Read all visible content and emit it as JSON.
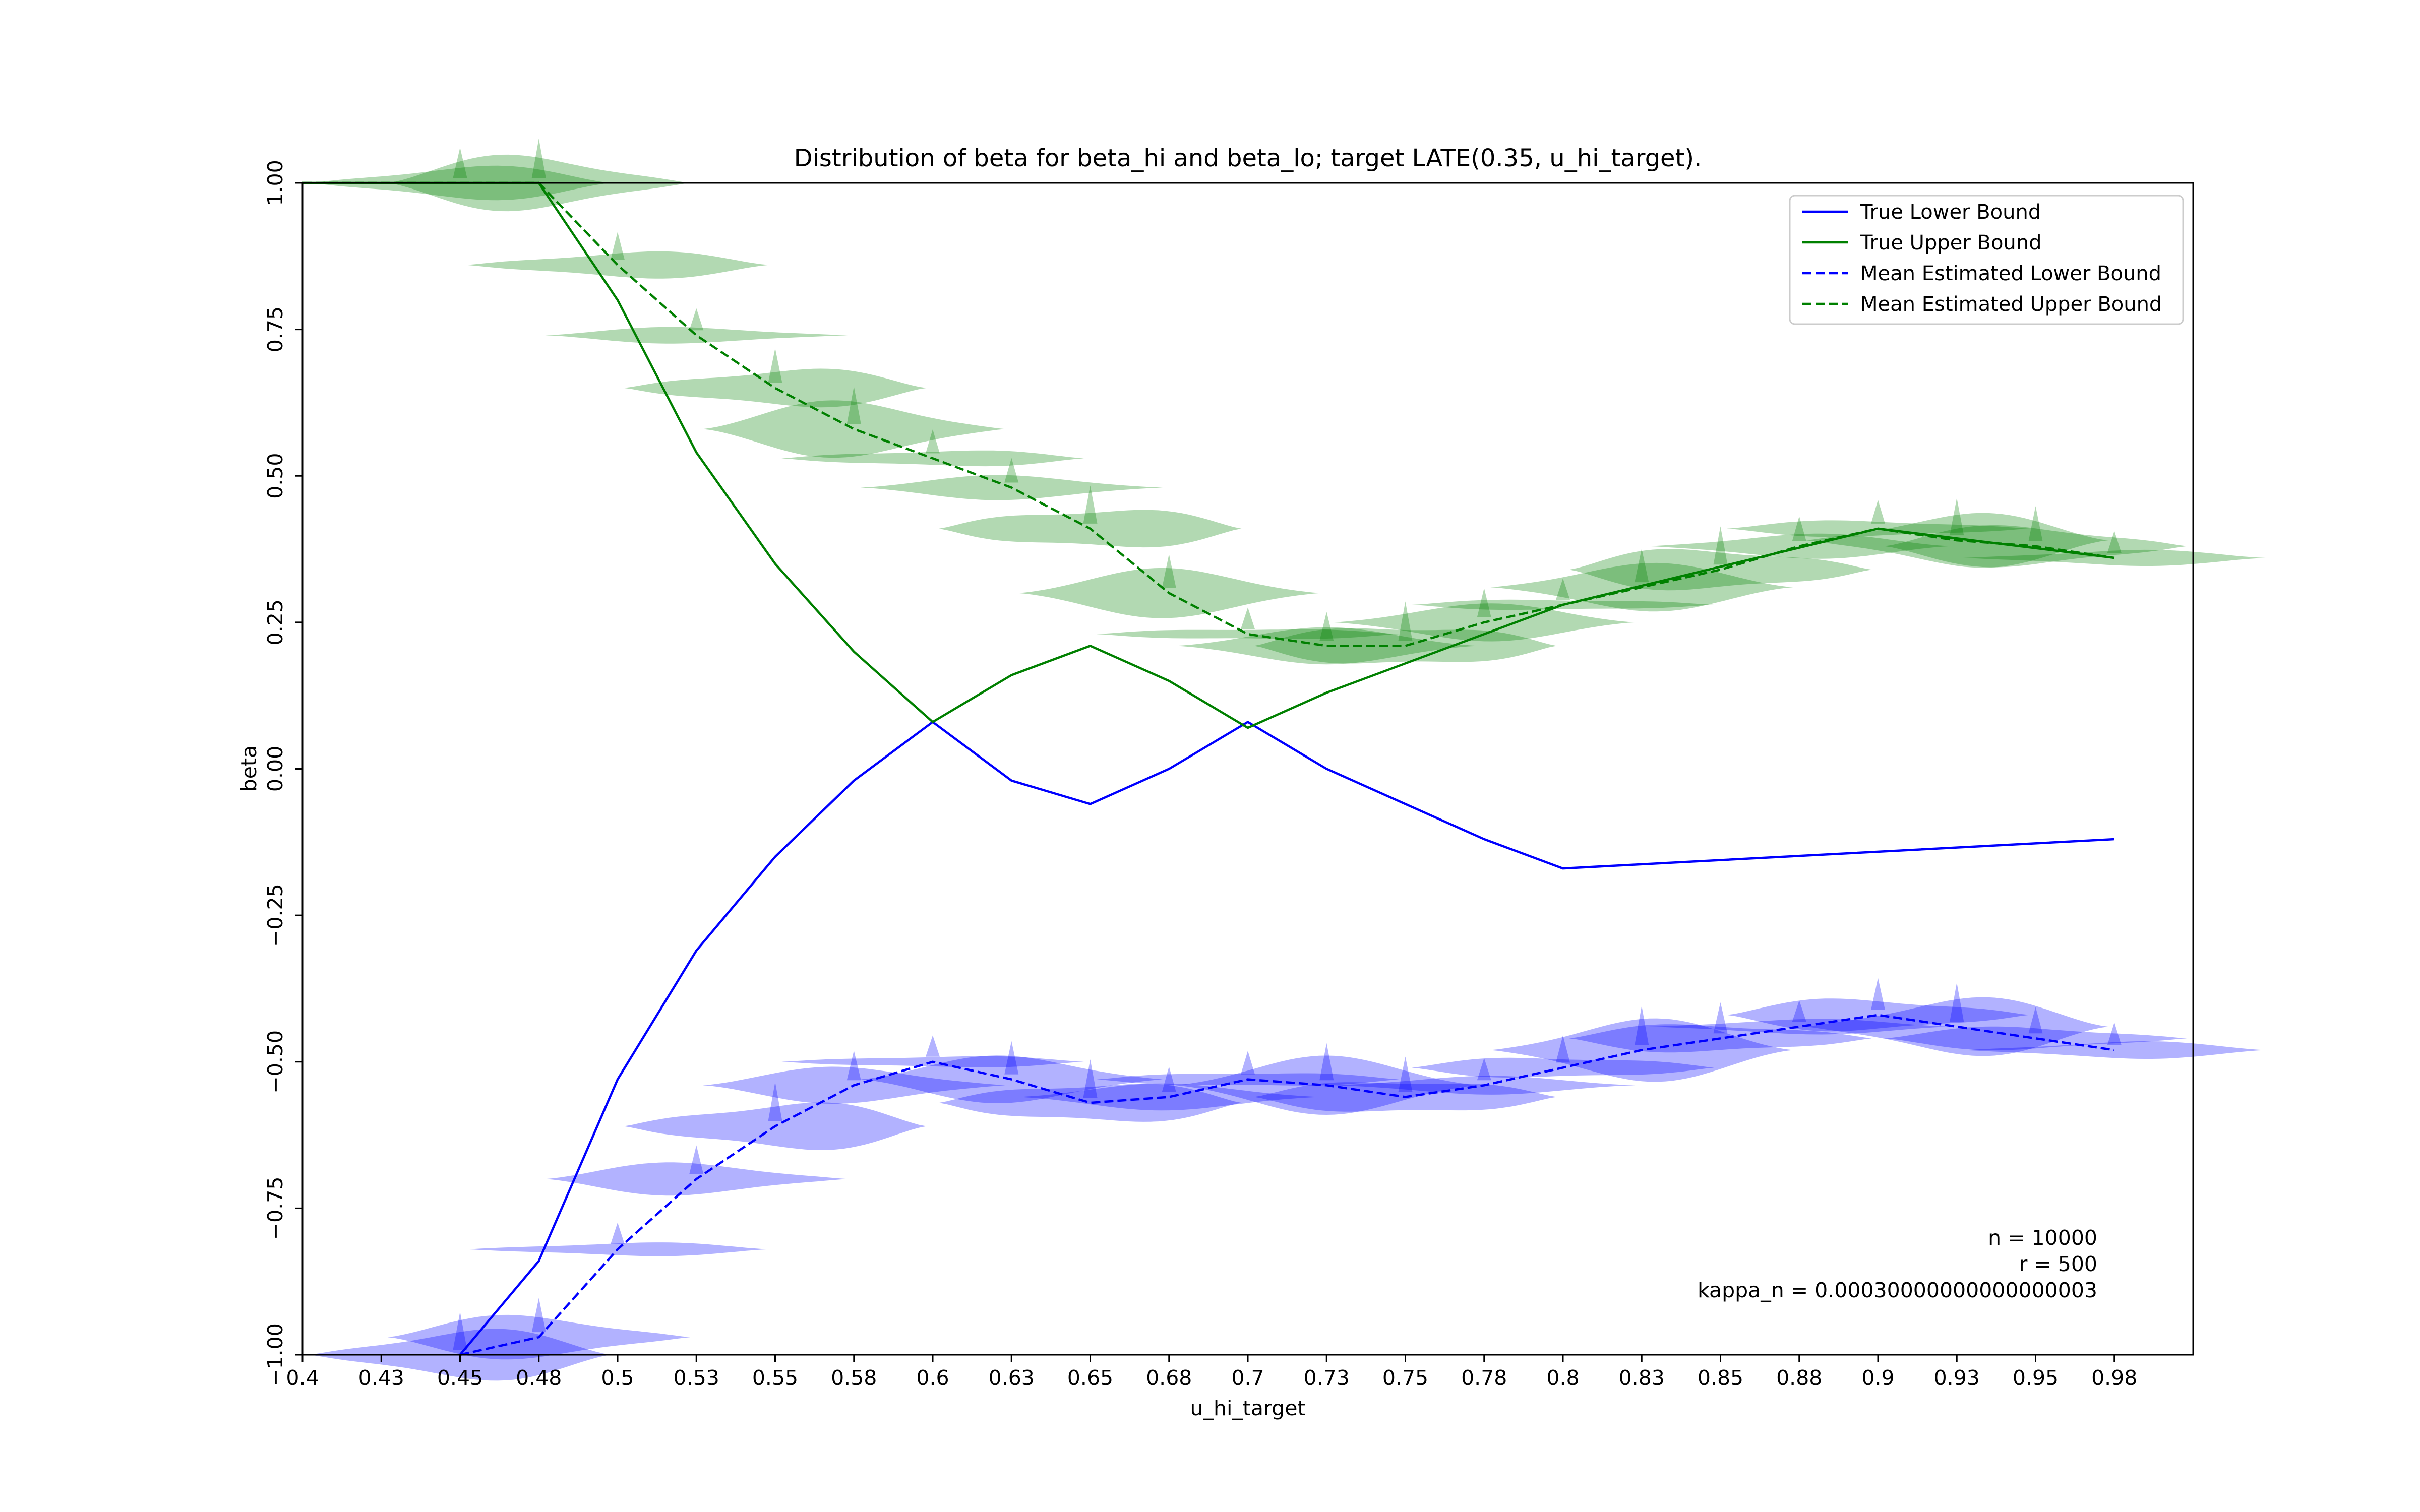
{
  "chart_data": {
    "type": "line",
    "title": "Distribution of beta for beta_hi and beta_lo; target LATE(0.35, u_hi_target).",
    "xlabel": "u_hi_target",
    "ylabel": "beta",
    "xlim": [
      0.4,
      1.0
    ],
    "ylim": [
      -1.0,
      1.0
    ],
    "grid": false,
    "legend_position": "top-right",
    "x_tick_labels": [
      "0.4",
      "0.43",
      "0.45",
      "0.48",
      "0.5",
      "0.53",
      "0.55",
      "0.58",
      "0.6",
      "0.63",
      "0.65",
      "0.68",
      "0.7",
      "0.73",
      "0.75",
      "0.78",
      "0.8",
      "0.83",
      "0.85",
      "0.88",
      "0.9",
      "0.93",
      "0.95",
      "0.98"
    ],
    "y_tick_labels": [
      "1.00",
      "0.75",
      "0.50",
      "0.25",
      "0.00",
      "−0.25",
      "−0.50",
      "−0.75",
      "−1.00"
    ],
    "x": [
      0.4,
      0.425,
      0.45,
      0.475,
      0.5,
      0.525,
      0.55,
      0.575,
      0.6,
      0.625,
      0.65,
      0.675,
      0.7,
      0.725,
      0.75,
      0.775,
      0.8,
      0.825,
      0.85,
      0.875,
      0.9,
      0.925,
      0.95,
      0.975
    ],
    "series": [
      {
        "name": "True Lower Bound",
        "style": "solid",
        "color": "#0000ff",
        "x": [
          0.45,
          0.475,
          0.5,
          0.525,
          0.55,
          0.575,
          0.6,
          0.625,
          0.65,
          0.675,
          0.7,
          0.725,
          0.75,
          0.775,
          0.8,
          0.975
        ],
        "values": [
          -1.0,
          -0.84,
          -0.53,
          -0.31,
          -0.15,
          -0.02,
          0.08,
          -0.02,
          -0.06,
          0.0,
          0.08,
          0.0,
          -0.06,
          -0.12,
          -0.17,
          -0.12
        ]
      },
      {
        "name": "True Upper Bound",
        "style": "solid",
        "color": "#008000",
        "x": [
          0.4,
          0.475,
          0.5,
          0.525,
          0.55,
          0.575,
          0.6,
          0.625,
          0.65,
          0.675,
          0.7,
          0.725,
          0.75,
          0.8,
          0.9,
          0.975
        ],
        "values": [
          1.0,
          1.0,
          0.8,
          0.54,
          0.35,
          0.2,
          0.08,
          0.16,
          0.21,
          0.15,
          0.07,
          0.13,
          0.18,
          0.28,
          0.41,
          0.36
        ]
      },
      {
        "name": "Mean Estimated Lower Bound",
        "style": "dashed",
        "color": "#0000ff",
        "x": [
          0.45,
          0.475,
          0.5,
          0.525,
          0.55,
          0.575,
          0.6,
          0.625,
          0.65,
          0.675,
          0.7,
          0.725,
          0.75,
          0.775,
          0.8,
          0.825,
          0.85,
          0.875,
          0.9,
          0.925,
          0.95,
          0.975
        ],
        "values": [
          -1.0,
          -0.97,
          -0.82,
          -0.7,
          -0.61,
          -0.54,
          -0.5,
          -0.53,
          -0.57,
          -0.56,
          -0.53,
          -0.54,
          -0.56,
          -0.54,
          -0.51,
          -0.48,
          -0.46,
          -0.44,
          -0.42,
          -0.44,
          -0.46,
          -0.48
        ]
      },
      {
        "name": "Mean Estimated Upper Bound",
        "style": "dashed",
        "color": "#008000",
        "x": [
          0.4,
          0.475,
          0.5,
          0.525,
          0.55,
          0.575,
          0.6,
          0.625,
          0.65,
          0.675,
          0.7,
          0.725,
          0.75,
          0.775,
          0.8,
          0.825,
          0.85,
          0.875,
          0.9,
          0.925,
          0.95,
          0.975
        ],
        "values": [
          1.0,
          1.0,
          0.86,
          0.74,
          0.65,
          0.58,
          0.53,
          0.48,
          0.41,
          0.3,
          0.23,
          0.21,
          0.21,
          0.25,
          0.28,
          0.31,
          0.34,
          0.38,
          0.41,
          0.39,
          0.38,
          0.36
        ]
      }
    ],
    "violins": [
      {
        "color": "#008000",
        "alpha": 0.3,
        "x": [
          0.45,
          0.475,
          0.5,
          0.525,
          0.55,
          0.575,
          0.6,
          0.625,
          0.65,
          0.675,
          0.7,
          0.725,
          0.75,
          0.775,
          0.8,
          0.825,
          0.85,
          0.875,
          0.9,
          0.925,
          0.95,
          0.975
        ],
        "centers": [
          1.0,
          1.0,
          0.86,
          0.74,
          0.65,
          0.58,
          0.53,
          0.48,
          0.41,
          0.3,
          0.23,
          0.21,
          0.21,
          0.25,
          0.28,
          0.31,
          0.34,
          0.38,
          0.41,
          0.39,
          0.38,
          0.36
        ]
      },
      {
        "color": "#0000ff",
        "alpha": 0.3,
        "x": [
          0.45,
          0.475,
          0.5,
          0.525,
          0.55,
          0.575,
          0.6,
          0.625,
          0.65,
          0.675,
          0.7,
          0.725,
          0.75,
          0.775,
          0.8,
          0.825,
          0.85,
          0.875,
          0.9,
          0.925,
          0.95,
          0.975
        ],
        "centers": [
          -1.0,
          -0.97,
          -0.82,
          -0.7,
          -0.61,
          -0.54,
          -0.5,
          -0.53,
          -0.57,
          -0.56,
          -0.53,
          -0.54,
          -0.56,
          -0.54,
          -0.51,
          -0.48,
          -0.46,
          -0.44,
          -0.42,
          -0.44,
          -0.46,
          -0.48
        ]
      }
    ],
    "annotation": {
      "n_line": "n = 10000",
      "r_line": "r = 500",
      "kappa_line": "kappa_n = 0.00030000000000000003"
    }
  }
}
